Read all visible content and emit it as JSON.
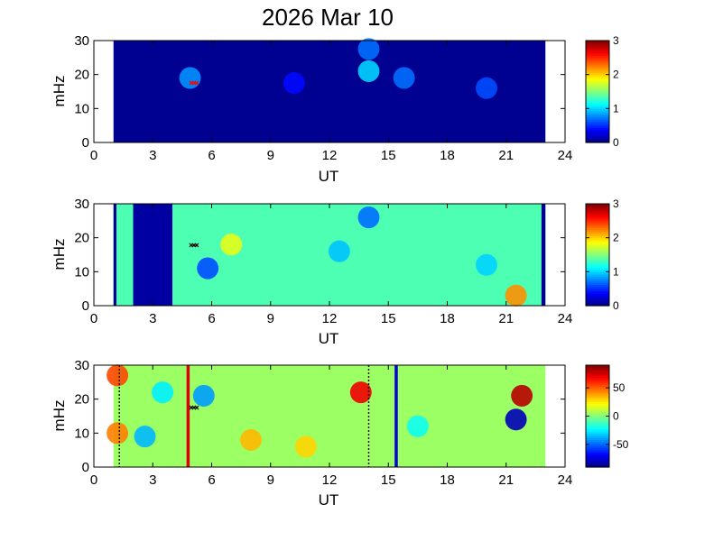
{
  "figure": {
    "title": "2026 Mar 10"
  },
  "chart_data": [
    {
      "type": "heatmap",
      "xlabel": "UT",
      "ylabel": "mHz",
      "xlim": [
        0,
        24
      ],
      "ylim": [
        0,
        30
      ],
      "xticks": [
        0,
        3,
        6,
        9,
        12,
        15,
        18,
        21,
        24
      ],
      "yticks": [
        0,
        10,
        20,
        30
      ],
      "colorbar": {
        "range": [
          0,
          3
        ],
        "ticks": [
          0,
          1,
          2,
          3
        ],
        "colormap": "jet"
      },
      "data_extent_ut": [
        1,
        23
      ],
      "background_value": 0.05,
      "blobs": [
        {
          "ut": 4.9,
          "mhz": 19.0,
          "value": 0.8
        },
        {
          "ut": 10.2,
          "mhz": 17.5,
          "value": 0.4
        },
        {
          "ut": 14.0,
          "mhz": 21.0,
          "value": 1.0
        },
        {
          "ut": 14.0,
          "mhz": 27.5,
          "value": 0.7
        },
        {
          "ut": 15.8,
          "mhz": 19.0,
          "value": 0.7
        },
        {
          "ut": 20.0,
          "mhz": 16.0,
          "value": 0.6
        }
      ],
      "markers": [
        {
          "ut": 5.1,
          "mhz": 17.5,
          "color": "#ff0000"
        }
      ],
      "lines": []
    },
    {
      "type": "heatmap",
      "xlabel": "UT",
      "ylabel": "mHz",
      "xlim": [
        0,
        24
      ],
      "ylim": [
        0,
        30
      ],
      "xticks": [
        0,
        3,
        6,
        9,
        12,
        15,
        18,
        21,
        24
      ],
      "yticks": [
        0,
        10,
        20,
        30
      ],
      "colorbar": {
        "range": [
          0,
          3
        ],
        "ticks": [
          0,
          1,
          2,
          3
        ],
        "colormap": "jet"
      },
      "data_extent_ut": [
        1,
        23
      ],
      "background_value": 1.35,
      "low_bands": [
        {
          "ut_start": 1.0,
          "ut_end": 1.15,
          "value": 0.05
        },
        {
          "ut_start": 2.0,
          "ut_end": 4.0,
          "value": 0.1
        },
        {
          "ut_start": 22.8,
          "ut_end": 23.0,
          "value": 0.05
        }
      ],
      "blobs": [
        {
          "ut": 14.0,
          "mhz": 26.0,
          "value": 0.7
        },
        {
          "ut": 12.5,
          "mhz": 16.0,
          "value": 0.95
        },
        {
          "ut": 5.8,
          "mhz": 11.0,
          "value": 0.6
        },
        {
          "ut": 21.5,
          "mhz": 3.0,
          "value": 2.2
        },
        {
          "ut": 7.0,
          "mhz": 18.0,
          "value": 1.8
        },
        {
          "ut": 20.0,
          "mhz": 12.0,
          "value": 1.0
        }
      ],
      "markers": [
        {
          "ut": 5.1,
          "mhz": 17.8,
          "color": "#000000"
        }
      ],
      "lines": []
    },
    {
      "type": "heatmap",
      "xlabel": "UT",
      "ylabel": "mHz",
      "xlim": [
        0,
        24
      ],
      "ylim": [
        0,
        30
      ],
      "xticks": [
        0,
        3,
        6,
        9,
        12,
        15,
        18,
        21,
        24
      ],
      "yticks": [
        0,
        10,
        20,
        30
      ],
      "colorbar": {
        "range": [
          -90,
          90
        ],
        "ticks": [
          -50,
          0,
          50
        ],
        "colormap": "jet"
      },
      "data_extent_ut": [
        1,
        23
      ],
      "background_value": 5,
      "blobs": [
        {
          "ut": 13.6,
          "mhz": 22.0,
          "value": 70
        },
        {
          "ut": 21.5,
          "mhz": 14.0,
          "value": -80
        },
        {
          "ut": 21.8,
          "mhz": 21.0,
          "value": 80
        },
        {
          "ut": 1.2,
          "mhz": 27.0,
          "value": 55
        },
        {
          "ut": 1.2,
          "mhz": 10.0,
          "value": 45
        },
        {
          "ut": 2.6,
          "mhz": 9.0,
          "value": -35
        },
        {
          "ut": 5.6,
          "mhz": 21.0,
          "value": -40
        },
        {
          "ut": 3.5,
          "mhz": 22.0,
          "value": -25
        },
        {
          "ut": 8.0,
          "mhz": 8.0,
          "value": 35
        },
        {
          "ut": 10.8,
          "mhz": 6.0,
          "value": 30
        },
        {
          "ut": 16.5,
          "mhz": 12.0,
          "value": -20
        }
      ],
      "markers": [
        {
          "ut": 5.1,
          "mhz": 17.5,
          "color": "#000000"
        }
      ],
      "lines": [
        {
          "ut": 1.3,
          "style": "dotted",
          "color": "#000000"
        },
        {
          "ut": 4.8,
          "style": "solid",
          "color": "#dd0000"
        },
        {
          "ut": 14.0,
          "style": "dotted",
          "color": "#000000"
        },
        {
          "ut": 15.4,
          "style": "solid",
          "color": "#0000dd"
        }
      ]
    }
  ]
}
